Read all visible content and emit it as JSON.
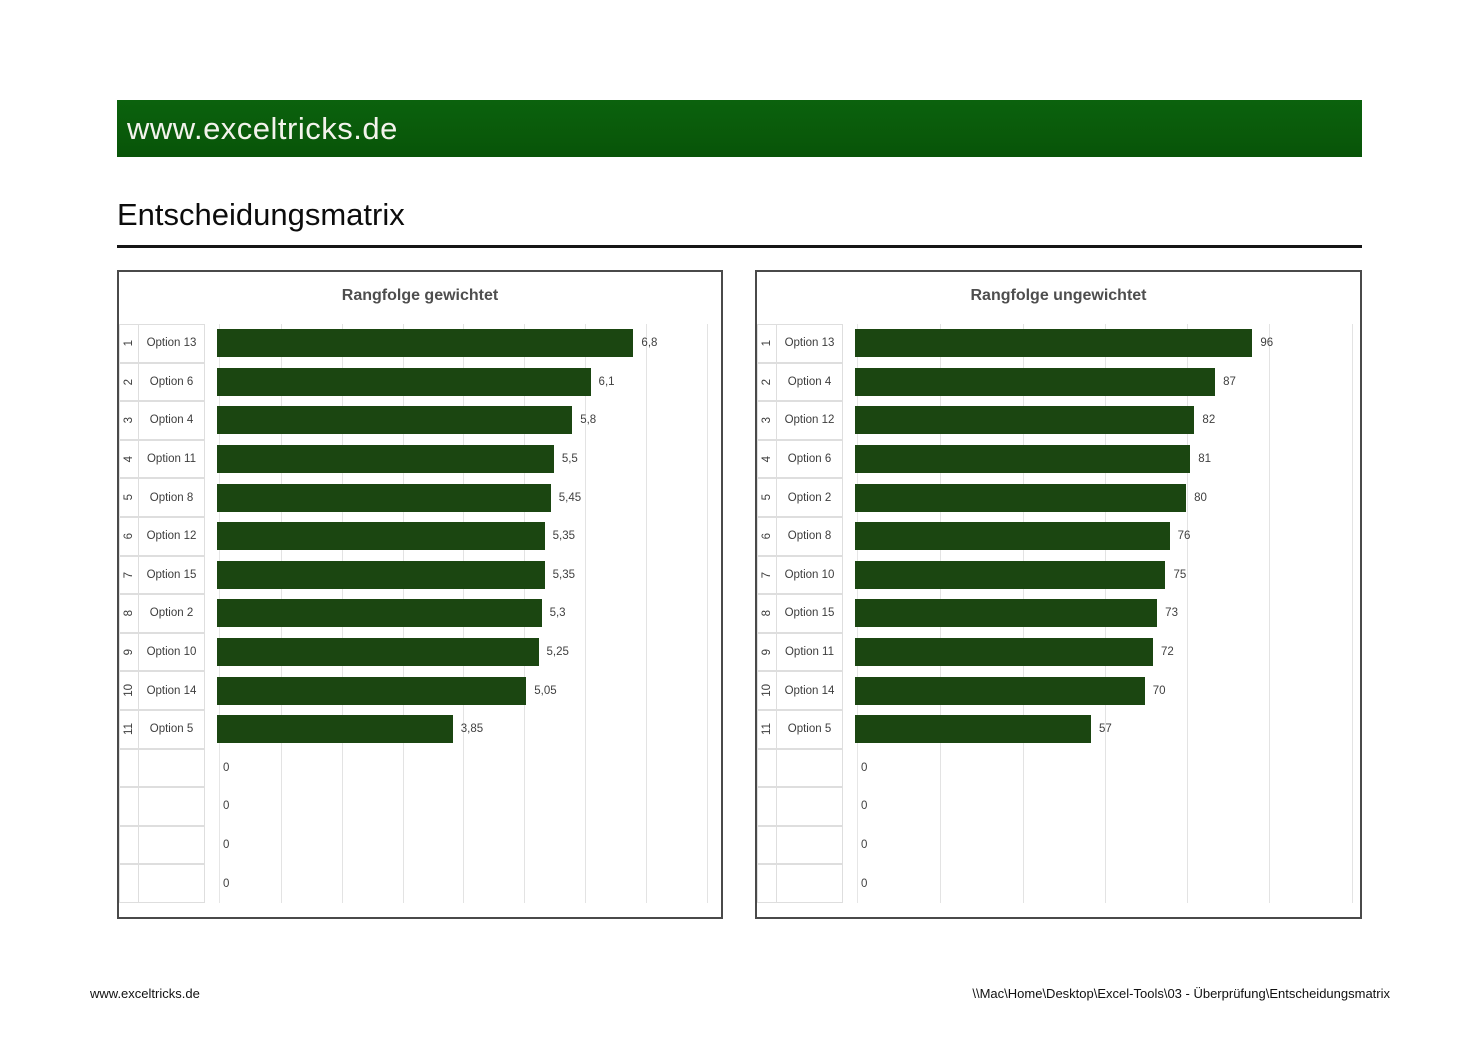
{
  "banner": {
    "text": "www.exceltricks.de"
  },
  "page_title": "Entscheidungsmatrix",
  "footer": {
    "left": "www.exceltricks.de",
    "right": "\\\\Mac\\Home\\Desktop\\Excel-Tools\\03 - Überprüfung\\Entscheidungsmatrix"
  },
  "colors": {
    "banner_green": "#0a5c0c",
    "bar_green": "#1b4611",
    "gridline": "#e3e3e3",
    "chart_border": "#4a4a4a",
    "text_dark": "#3d3d3d"
  },
  "chart_data": [
    {
      "type": "bar",
      "orientation": "horizontal",
      "title": "Rangfolge gewichtet",
      "legend": "none",
      "grid": "vertical",
      "xlim": [
        0,
        8.23
      ],
      "gridline_values": [
        1,
        2,
        3,
        4,
        5,
        6,
        7,
        8
      ],
      "ranks": [
        "1",
        "2",
        "3",
        "4",
        "5",
        "6",
        "7",
        "8",
        "9",
        "10",
        "11",
        "",
        "",
        "",
        ""
      ],
      "categories": [
        "Option 13",
        "Option 6",
        "Option 4",
        "Option 11",
        "Option 8",
        "Option 12",
        "Option 15",
        "Option 2",
        "Option 10",
        "Option 14",
        "Option 5",
        "",
        "",
        "",
        ""
      ],
      "values": [
        6.8,
        6.1,
        5.8,
        5.5,
        5.45,
        5.35,
        5.35,
        5.3,
        5.25,
        5.05,
        3.85,
        0,
        0,
        0,
        0
      ],
      "value_labels": [
        "6,8",
        "6,1",
        "5,8",
        "5,5",
        "5,45",
        "5,35",
        "5,35",
        "5,3",
        "5,25",
        "5,05",
        "3,85",
        "0",
        "0",
        "0",
        "0"
      ]
    },
    {
      "type": "bar",
      "orientation": "horizontal",
      "title": "Rangfolge ungewichtet",
      "legend": "none",
      "grid": "vertical",
      "xlim": [
        0,
        122
      ],
      "gridline_values": [
        20,
        40,
        60,
        80,
        100,
        120
      ],
      "ranks": [
        "1",
        "2",
        "3",
        "4",
        "5",
        "6",
        "7",
        "8",
        "9",
        "10",
        "11",
        "",
        "",
        "",
        ""
      ],
      "categories": [
        "Option 13",
        "Option 4",
        "Option 12",
        "Option 6",
        "Option 2",
        "Option 8",
        "Option 10",
        "Option 15",
        "Option 11",
        "Option 14",
        "Option 5",
        "",
        "",
        "",
        ""
      ],
      "values": [
        96,
        87,
        82,
        81,
        80,
        76,
        75,
        73,
        72,
        70,
        57,
        0,
        0,
        0,
        0
      ],
      "value_labels": [
        "96",
        "87",
        "82",
        "81",
        "80",
        "76",
        "75",
        "73",
        "72",
        "70",
        "57",
        "0",
        "0",
        "0",
        "0"
      ]
    }
  ]
}
